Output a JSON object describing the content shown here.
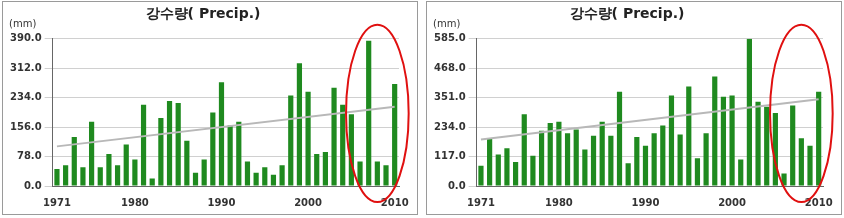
{
  "chart_data": [
    {
      "type": "bar",
      "title": "강수량( Precip.)",
      "ylabel": "(mm)",
      "categories": [
        "1971",
        null,
        null,
        null,
        null,
        null,
        null,
        null,
        null,
        "1980",
        null,
        null,
        null,
        null,
        null,
        null,
        null,
        null,
        null,
        "1990",
        null,
        null,
        null,
        null,
        null,
        null,
        null,
        null,
        null,
        "2000",
        null,
        null,
        null,
        null,
        null,
        null,
        null,
        null,
        null,
        "2010"
      ],
      "values": [
        45,
        55,
        130,
        50,
        170,
        50,
        85,
        55,
        110,
        70,
        215,
        20,
        180,
        225,
        220,
        120,
        35,
        70,
        195,
        275,
        160,
        170,
        65,
        35,
        50,
        30,
        55,
        240,
        325,
        250,
        85,
        90,
        260,
        215,
        190,
        65,
        385,
        65,
        55,
        270
      ],
      "trend": [
        105,
        210
      ],
      "color": "#1f8a1f",
      "ylim": [
        0,
        390
      ],
      "yticks": [
        {
          "value": 0,
          "label": "0.0"
        },
        {
          "value": 78,
          "label": "78.0"
        },
        {
          "value": 156,
          "label": "156.0"
        },
        {
          "value": 234,
          "label": "234.0"
        },
        {
          "value": 312,
          "label": "312.0"
        },
        {
          "value": 390,
          "label": "390.0"
        }
      ],
      "grid": true
    },
    {
      "type": "bar",
      "title": "강수량( Precip.)",
      "ylabel": "(mm)",
      "categories": [
        "1971",
        null,
        null,
        null,
        null,
        null,
        null,
        null,
        null,
        "1980",
        null,
        null,
        null,
        null,
        null,
        null,
        null,
        null,
        null,
        "1990",
        null,
        null,
        null,
        null,
        null,
        null,
        null,
        null,
        null,
        "2000",
        null,
        null,
        null,
        null,
        null,
        null,
        null,
        null,
        null,
        "2010"
      ],
      "values": [
        80,
        190,
        125,
        150,
        95,
        285,
        120,
        220,
        250,
        255,
        210,
        225,
        145,
        200,
        255,
        200,
        375,
        90,
        195,
        160,
        210,
        240,
        360,
        205,
        395,
        110,
        210,
        435,
        355,
        360,
        105,
        585,
        335,
        315,
        290,
        50,
        320,
        190,
        160,
        375
      ],
      "trend": [
        185,
        345
      ],
      "color": "#1f8a1f",
      "ylim": [
        0,
        585
      ],
      "yticks": [
        {
          "value": 0,
          "label": "0.0"
        },
        {
          "value": 117,
          "label": "117.0"
        },
        {
          "value": 234,
          "label": "234.0"
        },
        {
          "value": 351,
          "label": "351.0"
        },
        {
          "value": 468,
          "label": "468.0"
        },
        {
          "value": 585,
          "label": "585.0"
        }
      ],
      "grid": true
    }
  ]
}
